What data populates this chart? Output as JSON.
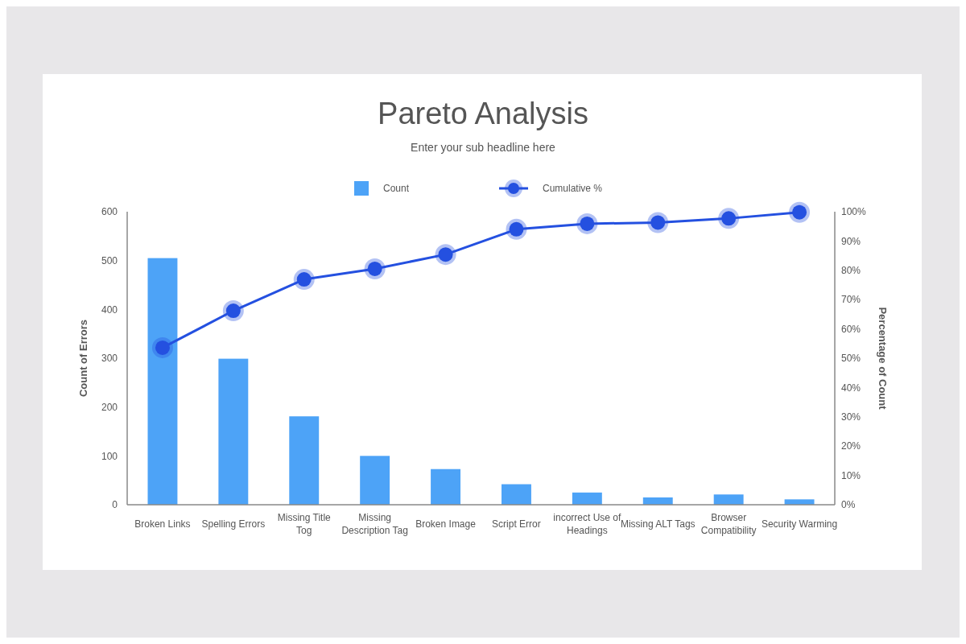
{
  "chart_data": {
    "type": "bar",
    "title": "Pareto Analysis",
    "subtitle": "Enter your sub headline here",
    "ylabel": "Count of Errors",
    "y2label": "Percentage of Count",
    "categories": [
      "Broken Links",
      "Spelling Errors",
      "Missing Title Tog",
      "Missing Description Tag",
      "Broken Image",
      "Script Error",
      "incorrect Use of Headings",
      "Missing ALT Tags",
      "Browser Compatibility",
      "Security Warming"
    ],
    "series": [
      {
        "name": "Count",
        "color": "#4da3f7",
        "values": [
          505,
          299,
          181,
          100,
          73,
          42,
          25,
          15,
          21,
          11
        ]
      },
      {
        "name": "Cumulative %",
        "type": "line",
        "axis": "y2",
        "color": "#2450e0",
        "marker": "circle",
        "values": [
          53.6,
          66.2,
          76.9,
          80.5,
          85.4,
          94.0,
          95.9,
          96.3,
          97.7,
          99.8
        ]
      }
    ],
    "ylim": [
      0,
      600
    ],
    "yticks": [
      0,
      100,
      200,
      300,
      400,
      500,
      600
    ],
    "y2lim": [
      0,
      100
    ],
    "y2ticks": [
      {
        "value": 0,
        "label": "0%"
      },
      {
        "value": 10,
        "label": "10%"
      },
      {
        "value": 20,
        "label": "20%"
      },
      {
        "value": 30,
        "label": "30%"
      },
      {
        "value": 40,
        "label": "40%"
      },
      {
        "value": 50,
        "label": "50%"
      },
      {
        "value": 60,
        "label": "60%"
      },
      {
        "value": 70,
        "label": "70%"
      },
      {
        "value": 80,
        "label": "80%"
      },
      {
        "value": 90,
        "label": "90%"
      },
      {
        "value": 100,
        "label": "100%"
      }
    ],
    "legend": "top"
  }
}
